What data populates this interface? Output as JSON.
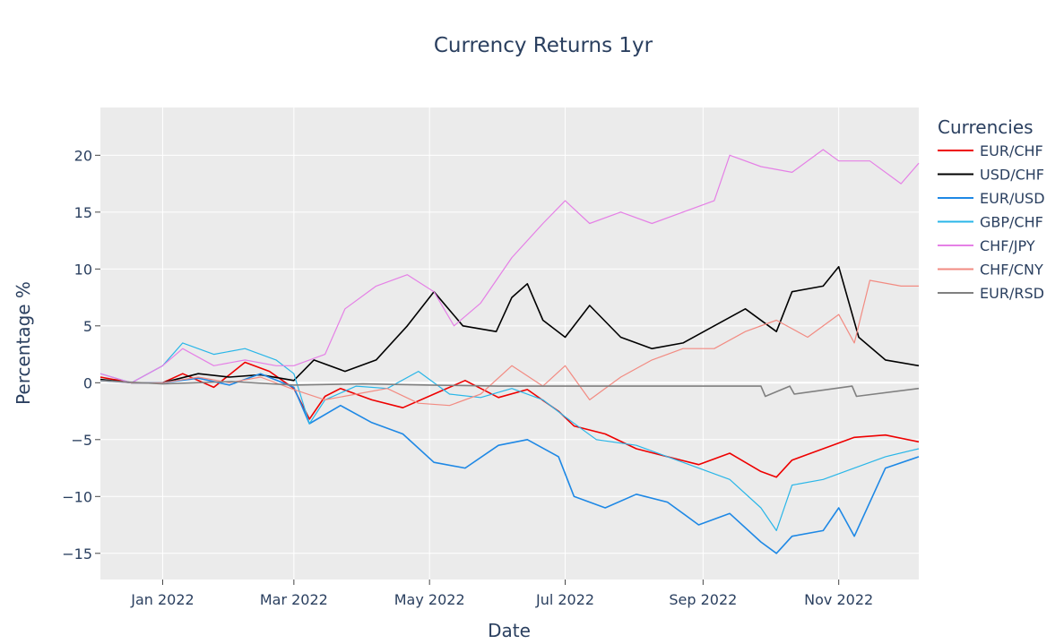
{
  "chart_data": {
    "type": "line",
    "title": "Currency Returns 1yr",
    "xlabel": "Date",
    "ylabel": "Percentage %",
    "legend_title": "Currencies",
    "legend_position": "right",
    "grid": true,
    "background": "#EBEBEB",
    "xlim": [
      "2021-12-04",
      "2022-12-07"
    ],
    "ylim": [
      -17.3,
      24.2
    ],
    "x_ticks": [
      {
        "value": "2022-01-01",
        "label": "Jan 2022"
      },
      {
        "value": "2022-03-01",
        "label": "Mar 2022"
      },
      {
        "value": "2022-05-01",
        "label": "May 2022"
      },
      {
        "value": "2022-07-01",
        "label": "Jul 2022"
      },
      {
        "value": "2022-09-01",
        "label": "Sep 2022"
      },
      {
        "value": "2022-11-01",
        "label": "Nov 2022"
      }
    ],
    "y_ticks": [
      {
        "value": 20,
        "label": "20"
      },
      {
        "value": 15,
        "label": "15"
      },
      {
        "value": 10,
        "label": "10"
      },
      {
        "value": 5,
        "label": "5"
      },
      {
        "value": 0,
        "label": "0"
      },
      {
        "value": -5,
        "label": "−5"
      },
      {
        "value": -10,
        "label": "−10"
      },
      {
        "value": -15,
        "label": "−15"
      }
    ],
    "series": [
      {
        "name": "EUR/CHF",
        "color": "#EE0000",
        "x": [
          "2021-12-04",
          "2021-12-18",
          "2022-01-01",
          "2022-01-10",
          "2022-01-24",
          "2022-02-07",
          "2022-02-18",
          "2022-03-01",
          "2022-03-08",
          "2022-03-15",
          "2022-03-22",
          "2022-04-05",
          "2022-04-19",
          "2022-05-03",
          "2022-05-17",
          "2022-06-01",
          "2022-06-14",
          "2022-06-28",
          "2022-07-05",
          "2022-07-19",
          "2022-08-02",
          "2022-08-16",
          "2022-08-30",
          "2022-09-13",
          "2022-09-27",
          "2022-10-04",
          "2022-10-11",
          "2022-10-25",
          "2022-11-08",
          "2022-11-22",
          "2022-12-07"
        ],
        "y": [
          0.5,
          0,
          0,
          0.8,
          -0.4,
          1.8,
          1.0,
          -0.5,
          -3.2,
          -1.2,
          -0.5,
          -1.5,
          -2.2,
          -1.0,
          0.2,
          -1.3,
          -0.6,
          -2.5,
          -3.8,
          -4.5,
          -5.8,
          -6.5,
          -7.2,
          -6.2,
          -7.8,
          -8.3,
          -6.8,
          -5.8,
          -4.8,
          -4.6,
          -5.2
        ]
      },
      {
        "name": "USD/CHF",
        "color": "#000000",
        "x": [
          "2021-12-04",
          "2021-12-18",
          "2022-01-01",
          "2022-01-17",
          "2022-01-31",
          "2022-02-14",
          "2022-03-01",
          "2022-03-10",
          "2022-03-24",
          "2022-04-07",
          "2022-04-21",
          "2022-05-03",
          "2022-05-16",
          "2022-05-31",
          "2022-06-07",
          "2022-06-14",
          "2022-06-21",
          "2022-07-01",
          "2022-07-12",
          "2022-07-26",
          "2022-08-09",
          "2022-08-23",
          "2022-09-06",
          "2022-09-20",
          "2022-10-04",
          "2022-10-11",
          "2022-10-25",
          "2022-11-01",
          "2022-11-10",
          "2022-11-22",
          "2022-12-07"
        ],
        "y": [
          0.3,
          0,
          0,
          0.8,
          0.5,
          0.7,
          0.2,
          2.0,
          1.0,
          2.0,
          5.0,
          8.0,
          5.0,
          4.5,
          7.5,
          8.7,
          5.5,
          4.0,
          6.8,
          4.0,
          3.0,
          3.5,
          5.0,
          6.5,
          4.5,
          8.0,
          8.5,
          10.2,
          4.0,
          2.0,
          1.5
        ]
      },
      {
        "name": "EUR/USD",
        "color": "#1E88E5",
        "x": [
          "2021-12-04",
          "2021-12-18",
          "2022-01-01",
          "2022-01-17",
          "2022-01-31",
          "2022-02-14",
          "2022-03-01",
          "2022-03-08",
          "2022-03-22",
          "2022-04-05",
          "2022-04-19",
          "2022-05-03",
          "2022-05-17",
          "2022-06-01",
          "2022-06-14",
          "2022-06-28",
          "2022-07-05",
          "2022-07-19",
          "2022-08-02",
          "2022-08-16",
          "2022-08-30",
          "2022-09-13",
          "2022-09-27",
          "2022-10-04",
          "2022-10-11",
          "2022-10-25",
          "2022-11-01",
          "2022-11-08",
          "2022-11-22",
          "2022-12-07"
        ],
        "y": [
          0.2,
          0,
          0,
          0.4,
          -0.2,
          0.8,
          -0.4,
          -3.6,
          -2.0,
          -3.5,
          -4.5,
          -7.0,
          -7.5,
          -5.5,
          -5.0,
          -6.5,
          -10.0,
          -11.0,
          -9.8,
          -10.5,
          -12.5,
          -11.5,
          -14.0,
          -15.0,
          -13.5,
          -13.0,
          -11.0,
          -13.5,
          -7.5,
          -6.5
        ]
      },
      {
        "name": "GBP/CHF",
        "color": "#29B6E8",
        "x": [
          "2021-12-04",
          "2021-12-18",
          "2022-01-01",
          "2022-01-10",
          "2022-01-24",
          "2022-02-07",
          "2022-02-21",
          "2022-03-01",
          "2022-03-08",
          "2022-03-15",
          "2022-03-29",
          "2022-04-12",
          "2022-04-26",
          "2022-05-10",
          "2022-05-24",
          "2022-06-07",
          "2022-06-21",
          "2022-07-01",
          "2022-07-15",
          "2022-08-02",
          "2022-08-16",
          "2022-08-30",
          "2022-09-13",
          "2022-09-27",
          "2022-10-04",
          "2022-10-11",
          "2022-10-25",
          "2022-11-08",
          "2022-11-22",
          "2022-12-07"
        ],
        "y": [
          0.8,
          0,
          1.5,
          3.5,
          2.5,
          3.0,
          2.0,
          0.8,
          -3.6,
          -1.5,
          -0.3,
          -0.5,
          1.0,
          -1.0,
          -1.3,
          -0.5,
          -1.5,
          -3.0,
          -5.0,
          -5.5,
          -6.5,
          -7.5,
          -8.5,
          -11.0,
          -13.0,
          -9.0,
          -8.5,
          -7.5,
          -6.5,
          -5.8
        ]
      },
      {
        "name": "CHF/JPY",
        "color": "#E580E6",
        "x": [
          "2021-12-04",
          "2021-12-18",
          "2022-01-01",
          "2022-01-10",
          "2022-01-24",
          "2022-02-07",
          "2022-02-21",
          "2022-03-01",
          "2022-03-15",
          "2022-03-24",
          "2022-04-07",
          "2022-04-21",
          "2022-05-03",
          "2022-05-12",
          "2022-05-24",
          "2022-06-07",
          "2022-06-21",
          "2022-07-01",
          "2022-07-12",
          "2022-07-26",
          "2022-08-09",
          "2022-08-23",
          "2022-09-06",
          "2022-09-13",
          "2022-09-27",
          "2022-10-11",
          "2022-10-25",
          "2022-11-01",
          "2022-11-15",
          "2022-11-29",
          "2022-12-07"
        ],
        "y": [
          0.8,
          0,
          1.5,
          3.0,
          1.5,
          2.0,
          1.5,
          1.5,
          2.5,
          6.5,
          8.5,
          9.5,
          8.0,
          5.0,
          7.0,
          11.0,
          14.0,
          16.0,
          14.0,
          15.0,
          14.0,
          15.0,
          16.0,
          20.0,
          19.0,
          18.5,
          20.5,
          19.5,
          19.5,
          17.5,
          19.3
        ]
      },
      {
        "name": "CHF/CNY",
        "color": "#F28B82",
        "x": [
          "2021-12-04",
          "2021-12-18",
          "2022-01-01",
          "2022-01-17",
          "2022-01-31",
          "2022-02-14",
          "2022-03-01",
          "2022-03-15",
          "2022-03-29",
          "2022-04-12",
          "2022-04-26",
          "2022-05-10",
          "2022-05-24",
          "2022-06-07",
          "2022-06-21",
          "2022-07-01",
          "2022-07-12",
          "2022-07-26",
          "2022-08-09",
          "2022-08-23",
          "2022-09-06",
          "2022-09-20",
          "2022-10-04",
          "2022-10-18",
          "2022-11-01",
          "2022-11-08",
          "2022-11-15",
          "2022-11-29",
          "2022-12-07"
        ],
        "y": [
          0.2,
          0,
          0,
          0.5,
          0,
          0.5,
          -0.6,
          -1.5,
          -1.0,
          -0.5,
          -1.8,
          -2.0,
          -1.0,
          1.5,
          -0.3,
          1.5,
          -1.5,
          0.5,
          2.0,
          3.0,
          3.0,
          4.5,
          5.5,
          4.0,
          6.0,
          3.5,
          9.0,
          8.5,
          8.5
        ]
      },
      {
        "name": "EUR/RSD",
        "color": "#808080",
        "x": [
          "2021-12-04",
          "2022-01-01",
          "2022-02-01",
          "2022-03-01",
          "2022-04-01",
          "2022-05-01",
          "2022-06-01",
          "2022-07-01",
          "2022-08-01",
          "2022-09-01",
          "2022-09-27",
          "2022-09-29",
          "2022-10-10",
          "2022-10-12",
          "2022-11-07",
          "2022-11-09",
          "2022-12-07"
        ],
        "y": [
          0.2,
          -0.1,
          0.1,
          -0.2,
          -0.1,
          -0.2,
          -0.3,
          -0.3,
          -0.3,
          -0.3,
          -0.3,
          -1.2,
          -0.3,
          -1.0,
          -0.3,
          -1.2,
          -0.5
        ]
      }
    ]
  }
}
